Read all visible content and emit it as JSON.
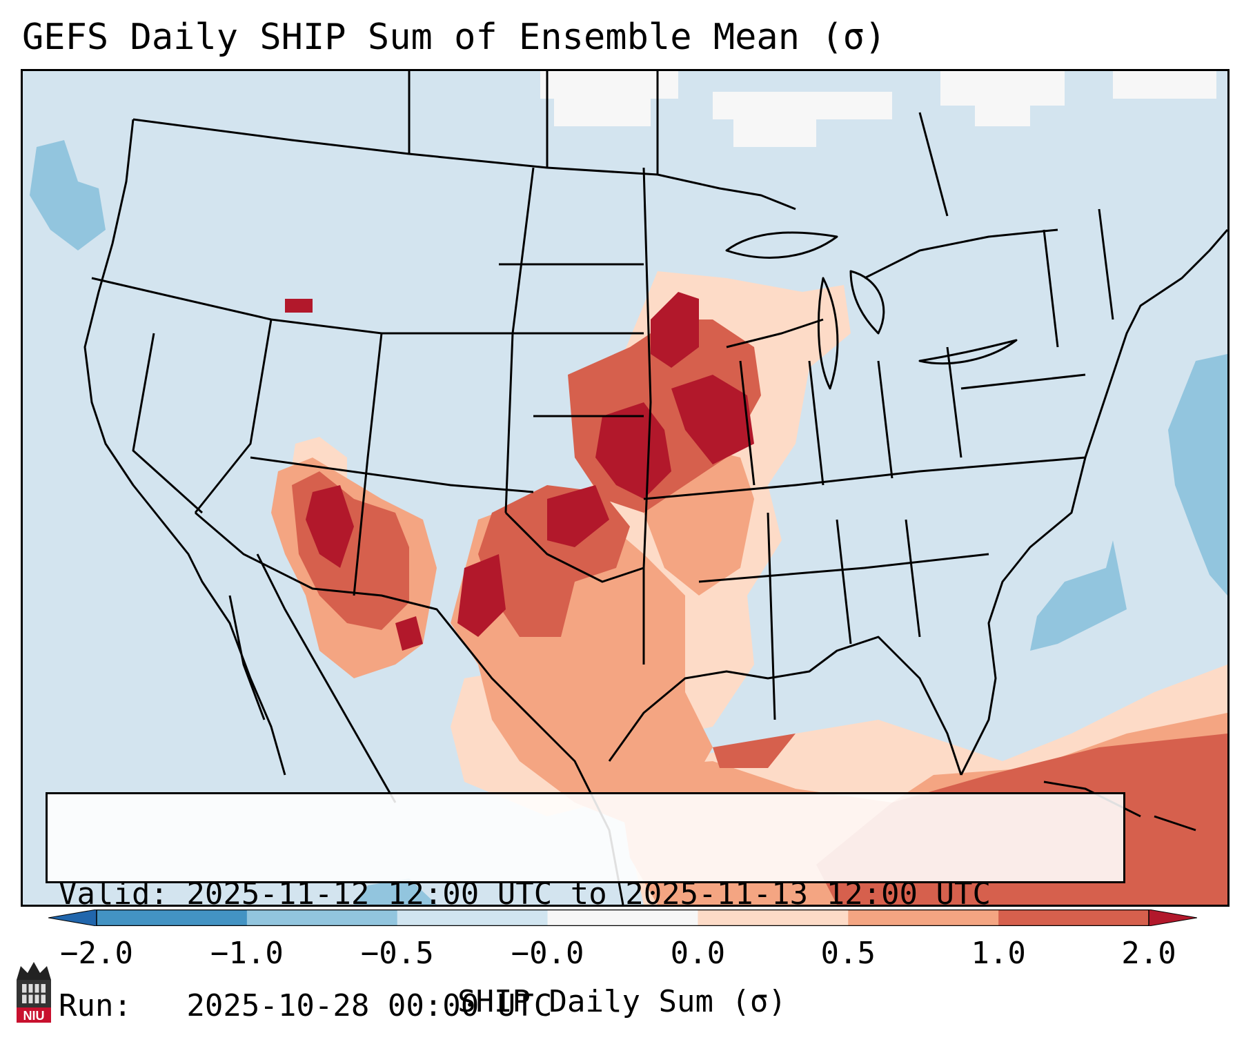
{
  "title": "GEFS Daily SHIP Sum of Ensemble Mean (σ)",
  "info": {
    "valid_line": "Valid: 2025-11-12 12:00 UTC to 2025-11-13 12:00 UTC",
    "run_line": "Run:   2025-10-28 00:00 UTC"
  },
  "colorbar": {
    "label": "SHIP Daily Sum (σ)",
    "tick_labels": [
      "−2.0",
      "−1.0",
      "−0.5",
      "−0.0",
      "0.0",
      "0.5",
      "1.0",
      "2.0"
    ],
    "bins": [
      {
        "range": "below -2.0",
        "color": "#2166ac"
      },
      {
        "range": "-2.0 to -1.0",
        "color": "#4393c3"
      },
      {
        "range": "-1.0 to -0.5",
        "color": "#92c5de"
      },
      {
        "range": "-0.5 to -0.0",
        "color": "#d1e5f0"
      },
      {
        "range": "-0.0 to 0.0",
        "color": "#f7f7f7"
      },
      {
        "range": "0.0 to 0.5",
        "color": "#fddbc7"
      },
      {
        "range": "0.5 to 1.0",
        "color": "#f4a582"
      },
      {
        "range": "1.0 to 2.0",
        "color": "#d6604d"
      },
      {
        "range": "above 2.0",
        "color": "#b2182b"
      }
    ]
  },
  "field_regions": [
    {
      "area": "Upper Midwest / Iowa / Nebraska / Kansas",
      "category": "above 2.0"
    },
    {
      "area": "Arizona / New Mexico",
      "category": "1.0 to 2.0"
    },
    {
      "area": "Texas / Oklahoma",
      "category": "0.5 to 1.0"
    },
    {
      "area": "Gulf of Mexico / Caribbean",
      "category": "0.5 to 1.0"
    },
    {
      "area": "Western Atlantic",
      "category": "-1.0 to -0.5"
    }
  ],
  "logo_text": "NIU"
}
